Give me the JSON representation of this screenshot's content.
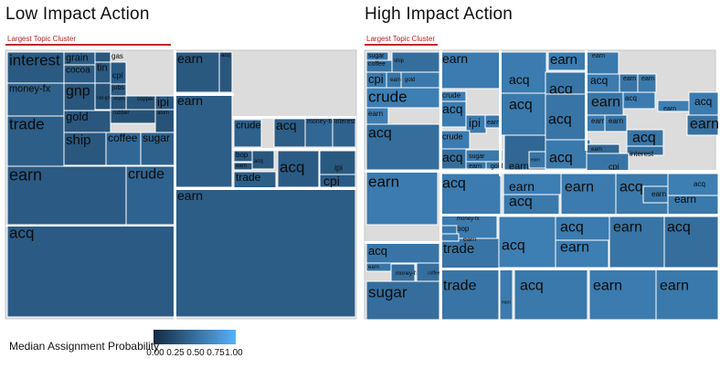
{
  "panels": [
    {
      "title": "Low Impact Action",
      "subtitle": "Largest Topic Cluster"
    },
    {
      "title": "High Impact Action",
      "subtitle": "Largest Topic Cluster"
    }
  ],
  "legend": {
    "title": "Median Assignment Probability",
    "ticks": [
      "0.00",
      "0.25",
      "0.50",
      "0.75",
      "1.00"
    ],
    "color_low": "#132b43",
    "color_high": "#56b1f7"
  },
  "chart_data": [
    {
      "type": "heatmap",
      "title": "Low Impact Action",
      "subtitle": "Largest Topic Cluster",
      "color_scale": {
        "min": 0,
        "max": 1,
        "low": "#132b43",
        "high": "#56b1f7"
      },
      "tiles": [
        {
          "label": "interest",
          "v": 0.35
        },
        {
          "label": "grain",
          "v": 0.38
        },
        {
          "label": "gas",
          "v": 0.33
        },
        {
          "label": "cocoa",
          "v": 0.36
        },
        {
          "label": "tin",
          "v": 0.34
        },
        {
          "label": "money-fx",
          "v": 0.4
        },
        {
          "label": "gnp",
          "v": 0.32
        },
        {
          "label": "cpi",
          "v": 0.35
        },
        {
          "label": "jobs",
          "v": 0.36
        },
        {
          "label": "nat-gas",
          "v": 0.3
        },
        {
          "label": "reserves",
          "v": 0.29
        },
        {
          "label": "copper",
          "v": 0.31
        },
        {
          "label": "ipi",
          "v": 0.34
        },
        {
          "label": "gold",
          "v": 0.33
        },
        {
          "label": "rubber",
          "v": 0.28
        },
        {
          "label": "alum",
          "v": 0.3
        },
        {
          "label": "trade",
          "v": 0.38
        },
        {
          "label": "ship",
          "v": 0.33
        },
        {
          "label": "coffee",
          "v": 0.45
        },
        {
          "label": "sugar",
          "v": 0.4
        },
        {
          "label": "earn",
          "v": 0.36
        },
        {
          "label": "crude",
          "v": 0.42
        },
        {
          "label": "acq",
          "v": 0.36
        },
        {
          "label": "earn",
          "v": 0.34
        },
        {
          "label": "acq",
          "v": 0.32
        },
        {
          "label": "earn",
          "v": 0.38
        },
        {
          "label": "earn",
          "v": 0.37
        },
        {
          "label": "crude",
          "v": 0.4
        },
        {
          "label": "acq",
          "v": 0.38
        },
        {
          "label": "money-fx",
          "v": 0.45
        },
        {
          "label": "interest",
          "v": 0.42
        },
        {
          "label": "bop",
          "v": 0.36
        },
        {
          "label": "acq",
          "v": 0.33
        },
        {
          "label": "earn",
          "v": 0.3
        },
        {
          "label": "trade",
          "v": 0.38
        },
        {
          "label": "acq",
          "v": 0.36
        },
        {
          "label": "ipi",
          "v": 0.34
        },
        {
          "label": "cpi",
          "v": 0.36
        }
      ]
    },
    {
      "type": "heatmap",
      "title": "High Impact Action",
      "subtitle": "Largest Topic Cluster",
      "color_scale": {
        "min": 0,
        "max": 1,
        "low": "#132b43",
        "high": "#56b1f7"
      },
      "tiles": [
        {
          "label": "sugar",
          "v": 0.55
        },
        {
          "label": "coffee",
          "v": 0.55
        },
        {
          "label": "ship",
          "v": 0.5
        },
        {
          "label": "cpi",
          "v": 0.58
        },
        {
          "label": "earn",
          "v": 0.55
        },
        {
          "label": "gold",
          "v": 0.58
        },
        {
          "label": "crude",
          "v": 0.62
        },
        {
          "label": "earn",
          "v": 0.6
        },
        {
          "label": "acq",
          "v": 0.6
        },
        {
          "label": "earn",
          "v": 0.6
        },
        {
          "label": "earn",
          "v": 0.58
        },
        {
          "label": "acq",
          "v": 0.15
        },
        {
          "label": "acq",
          "v": 0.55
        },
        {
          "label": "acq",
          "v": 0.6
        },
        {
          "label": "earn",
          "v": 0.55
        },
        {
          "label": "earn",
          "v": 0.58
        },
        {
          "label": "crude",
          "v": 0.62
        },
        {
          "label": "acq",
          "v": 0.6
        },
        {
          "label": "ipi",
          "v": 0.6
        },
        {
          "label": "earn",
          "v": 0.58
        },
        {
          "label": "earn",
          "v": 0.62
        },
        {
          "label": "acq",
          "v": 0.5
        },
        {
          "label": "acq",
          "v": 0.58
        },
        {
          "label": "acq",
          "v": 0.55
        },
        {
          "label": "earn",
          "v": 0.55
        },
        {
          "label": "acq",
          "v": 0.6
        },
        {
          "label": "earn",
          "v": 0.6
        },
        {
          "label": "earn",
          "v": 0.55
        },
        {
          "label": "acq",
          "v": 0.6
        },
        {
          "label": "earn",
          "v": 0.62
        },
        {
          "label": "crude",
          "v": 0.6
        },
        {
          "label": "sugar",
          "v": 0.58
        },
        {
          "label": "acq",
          "v": 0.5
        },
        {
          "label": "earn",
          "v": 0.55
        },
        {
          "label": "gold",
          "v": 0.6
        },
        {
          "label": "earn",
          "v": 0.45
        },
        {
          "label": "acq",
          "v": 0.58
        },
        {
          "label": "earn",
          "v": 0.55
        },
        {
          "label": "interest",
          "v": 0.5
        },
        {
          "label": "earn",
          "v": 0.45
        },
        {
          "label": "acq",
          "v": 0.55
        },
        {
          "label": "cpi",
          "v": 0.55
        },
        {
          "label": "earn",
          "v": 0.52
        },
        {
          "label": "earn",
          "v": 0.6
        },
        {
          "label": "acq",
          "v": 0.6
        },
        {
          "label": "earn",
          "v": 0.62
        },
        {
          "label": "acq",
          "v": 0.58
        },
        {
          "label": "earn",
          "v": 0.6
        },
        {
          "label": "acq",
          "v": 0.58
        },
        {
          "label": "earn",
          "v": 0.55
        },
        {
          "label": "acq",
          "v": 0.62
        },
        {
          "label": "earn",
          "v": 0.58
        },
        {
          "label": "money-fx",
          "v": 0.6
        },
        {
          "label": "bop",
          "v": 0.58
        },
        {
          "label": "trade",
          "v": 0.55
        },
        {
          "label": "earn",
          "v": 0.6
        },
        {
          "label": "acq",
          "v": 0.62
        },
        {
          "label": "acq",
          "v": 0.6
        },
        {
          "label": "earn",
          "v": 0.62
        },
        {
          "label": "earn",
          "v": 0.55
        },
        {
          "label": "acq",
          "v": 0.5
        },
        {
          "label": "acq",
          "v": 0.55
        },
        {
          "label": "earn",
          "v": 0.55
        },
        {
          "label": "money-fx",
          "v": 0.5
        },
        {
          "label": "coffee",
          "v": 0.5
        },
        {
          "label": "sugar",
          "v": 0.5
        },
        {
          "label": "trade",
          "v": 0.55
        },
        {
          "label": "acq",
          "v": 0.58
        },
        {
          "label": "earn",
          "v": 0.6
        },
        {
          "label": "earn",
          "v": 0.58
        },
        {
          "label": "earn",
          "v": 0.6
        }
      ]
    }
  ]
}
